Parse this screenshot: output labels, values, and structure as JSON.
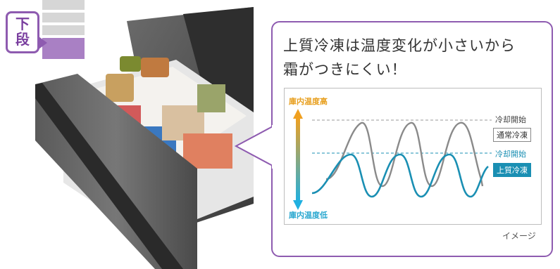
{
  "badge": {
    "line1": "下",
    "line2": "段"
  },
  "callout": {
    "title_line1": "上質冷凍は温度変化が小さいから",
    "title_line2": "霜がつきにくい！"
  },
  "chart_data": {
    "type": "line",
    "ylabel_high": "庫内温度高",
    "ylabel_low": "庫内温度低",
    "series": [
      {
        "name": "通常冷凍",
        "color": "#8a8a8a"
      },
      {
        "name": "上質冷凍",
        "color": "#1a8fb3"
      }
    ],
    "threshold_labels": {
      "normal": "冷却開始",
      "premium": "冷却開始"
    },
    "note": "イメージ"
  },
  "colors": {
    "accent": "#8e5bb0",
    "premium": "#1a8fb3",
    "normal": "#8a8a8a",
    "high": "#e8a020"
  }
}
